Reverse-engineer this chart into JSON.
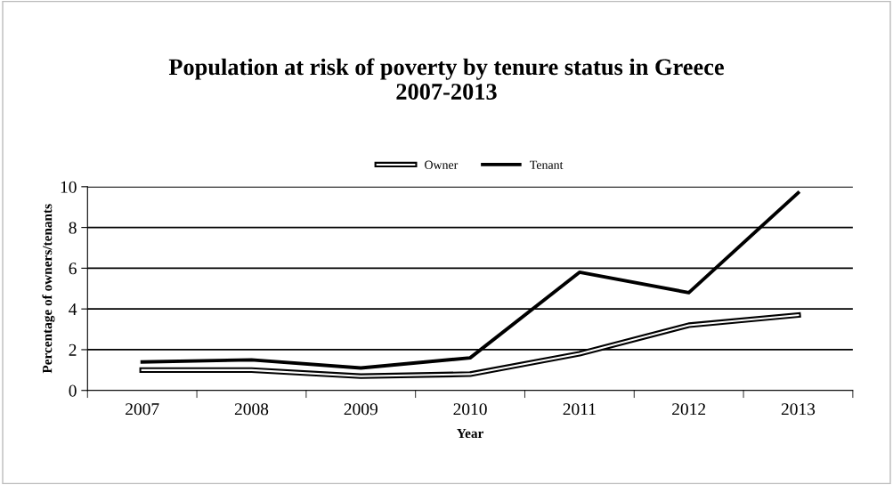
{
  "chart_data": {
    "type": "line",
    "title": "Population at risk of poverty by tenure status in Greece\n2007-2013",
    "xlabel": "Year",
    "ylabel": "Percentage of owners/tenants",
    "categories": [
      "2007",
      "2008",
      "2009",
      "2010",
      "2011",
      "2012",
      "2013"
    ],
    "series": [
      {
        "name": "Owner",
        "color": "#000000",
        "values": [
          1.0,
          1.0,
          0.7,
          0.8,
          1.8,
          3.2,
          3.7
        ]
      },
      {
        "name": "Tenant",
        "color": "#000000",
        "values": [
          1.4,
          1.5,
          1.1,
          1.6,
          5.8,
          4.8,
          9.7
        ]
      }
    ],
    "ylim": [
      0,
      10
    ],
    "yticks": [
      0,
      2,
      4,
      6,
      8,
      10
    ],
    "grid": "y",
    "legend": "top",
    "marker": "none",
    "line_style": "solid"
  }
}
